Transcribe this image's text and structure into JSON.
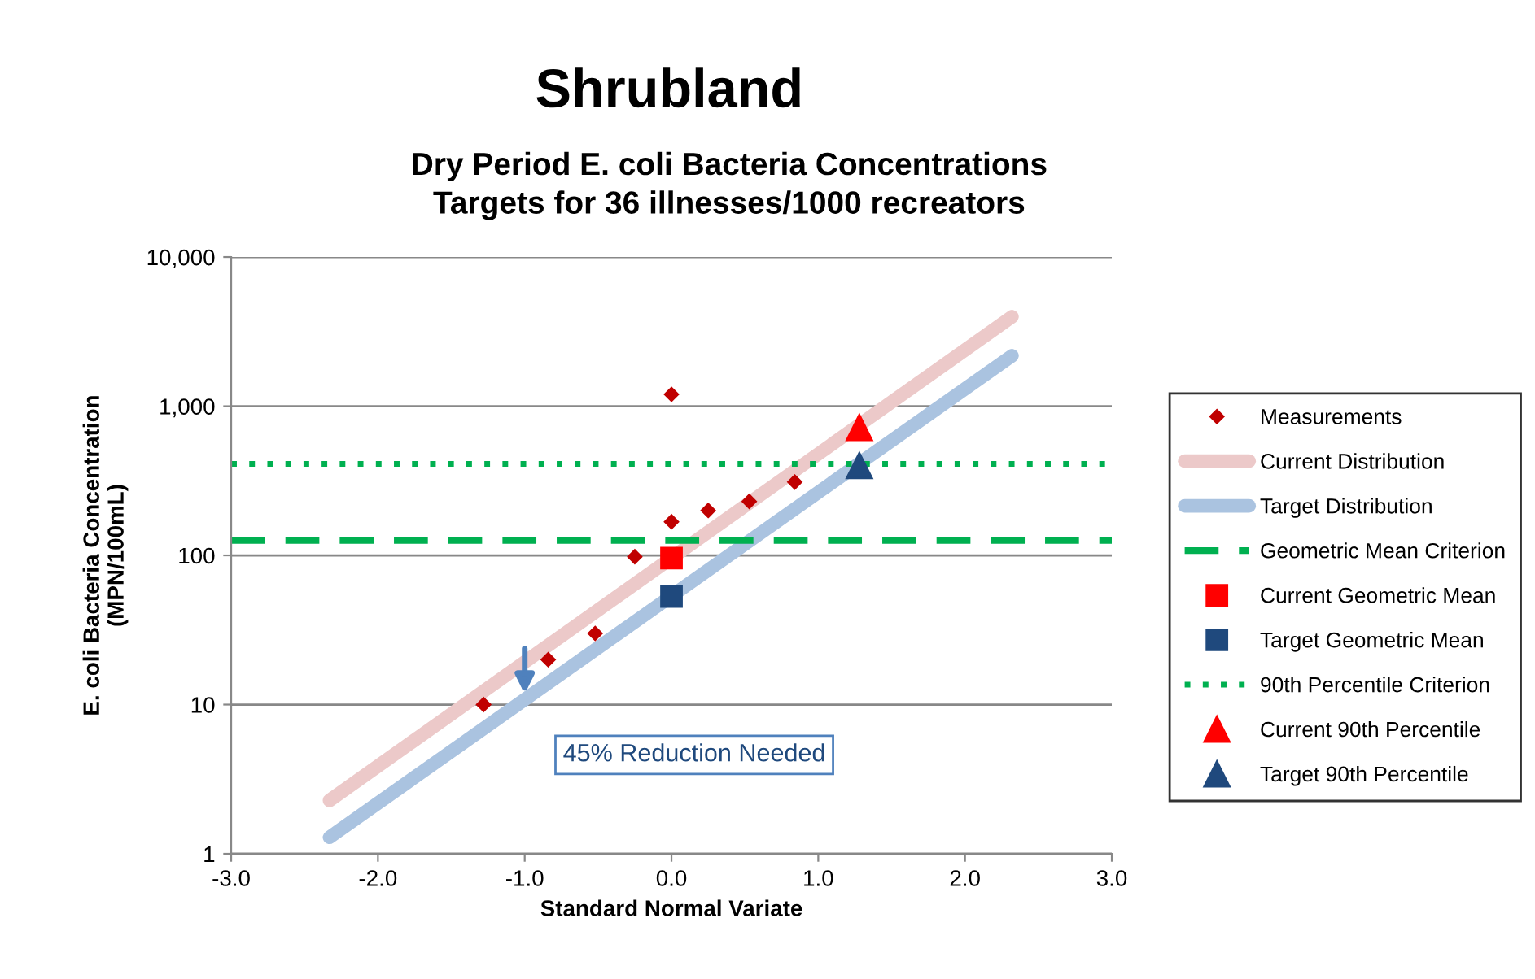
{
  "chart_data": {
    "type": "scatter",
    "title": "Shrubland",
    "subtitle": "Dry Period E. coli Bacteria Concentrations\nTargets for 36 illnesses/1000 recreators",
    "xlabel": "Standard Normal Variate",
    "ylabel": "E. coli Bacteria Concentration\n(MPN/100mL)",
    "log": "y",
    "grid": "y",
    "legend": "right",
    "xlim": [
      -3,
      3
    ],
    "xticks": [
      {
        "value": -3,
        "label": "-3.0"
      },
      {
        "value": -2,
        "label": "-2.0"
      },
      {
        "value": -1,
        "label": "-1.0"
      },
      {
        "value": 0,
        "label": "0.0"
      },
      {
        "value": 1,
        "label": "1.0"
      },
      {
        "value": 2,
        "label": "2.0"
      },
      {
        "value": 3,
        "label": "3.0"
      }
    ],
    "ylim": [
      1,
      10000
    ],
    "yticks": [
      1,
      10,
      100,
      {
        "value": 1000,
        "label": "1,000"
      },
      {
        "value": 10000,
        "label": "10,000"
      }
    ],
    "series": [
      {
        "name": "Measurements",
        "marker": "diamond",
        "color": "#c00000",
        "x": [
          -1.28,
          -0.84,
          -0.52,
          -0.25,
          0,
          0,
          0.25,
          0.53,
          0.84
        ],
        "values": [
          10,
          20,
          30,
          98,
          168,
          1200,
          200,
          230,
          310
        ]
      },
      {
        "name": "Current Distribution",
        "type": "line",
        "line_style": "solid",
        "color": "#ecc9c9",
        "x": [
          -2.33,
          2.32
        ],
        "values": [
          2.28,
          3980
        ]
      },
      {
        "name": "Target Distribution",
        "type": "line",
        "line_style": "solid",
        "color": "#aac3e0",
        "x": [
          -2.33,
          2.32
        ],
        "values": [
          1.29,
          2180
        ]
      },
      {
        "name": "Geometric Mean Criterion",
        "type": "line",
        "line_style": "dashed",
        "color": "#00b050",
        "x": [
          -3,
          3
        ],
        "values": [
          126,
          126
        ]
      },
      {
        "name": "Current Geometric Mean",
        "marker": "square",
        "color": "#ff0000",
        "x": [
          0
        ],
        "values": [
          96
        ]
      },
      {
        "name": "Target Geometric Mean",
        "marker": "square",
        "color": "#1f497d",
        "x": [
          0
        ],
        "values": [
          53
        ]
      },
      {
        "name": "90th Percentile Criterion",
        "type": "line",
        "line_style": "dotted",
        "color": "#00b050",
        "x": [
          -3,
          3
        ],
        "values": [
          410,
          410
        ]
      },
      {
        "name": "Current 90th Percentile",
        "marker": "triangle",
        "color": "#ff0000",
        "x": [
          1.28
        ],
        "values": [
          720
        ]
      },
      {
        "name": "Target 90th Percentile",
        "marker": "triangle",
        "color": "#1f497d",
        "x": [
          1.28
        ],
        "values": [
          400
        ]
      }
    ],
    "annotations": [
      {
        "text": "45% Reduction Needed",
        "x": -1,
        "y": 11
      }
    ]
  }
}
